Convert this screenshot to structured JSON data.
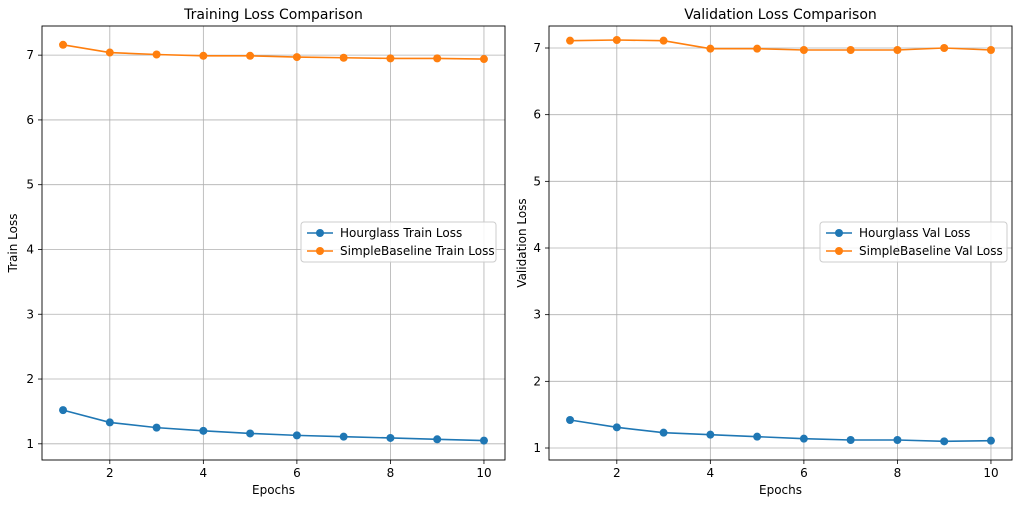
{
  "chart_data": [
    {
      "type": "line",
      "title": "Training Loss Comparison",
      "xlabel": "Epochs",
      "ylabel": "Train Loss",
      "xlim": [
        0.55,
        10.45
      ],
      "ylim": [
        0.75,
        7.45
      ],
      "xticks": [
        2,
        4,
        6,
        8,
        10
      ],
      "yticks": [
        1,
        2,
        3,
        4,
        5,
        6,
        7
      ],
      "grid": true,
      "legend": "center-right",
      "x": [
        1,
        2,
        3,
        4,
        5,
        6,
        7,
        8,
        9,
        10
      ],
      "series": [
        {
          "name": "Hourglass Train Loss",
          "color": "#1f77b4",
          "values": [
            1.52,
            1.33,
            1.25,
            1.2,
            1.16,
            1.13,
            1.11,
            1.09,
            1.07,
            1.05
          ]
        },
        {
          "name": "SimpleBaseline Train Loss",
          "color": "#ff7f0e",
          "values": [
            7.16,
            7.04,
            7.01,
            6.99,
            6.99,
            6.97,
            6.96,
            6.95,
            6.95,
            6.94
          ]
        }
      ]
    },
    {
      "type": "line",
      "title": "Validation Loss Comparison",
      "xlabel": "Epochs",
      "ylabel": "Validation Loss",
      "xlim": [
        0.55,
        10.45
      ],
      "ylim": [
        0.82,
        7.33
      ],
      "xticks": [
        2,
        4,
        6,
        8,
        10
      ],
      "yticks": [
        1,
        2,
        3,
        4,
        5,
        6,
        7
      ],
      "grid": true,
      "legend": "center-right",
      "x": [
        1,
        2,
        3,
        4,
        5,
        6,
        7,
        8,
        9,
        10
      ],
      "series": [
        {
          "name": "Hourglass Val Loss",
          "color": "#1f77b4",
          "values": [
            1.42,
            1.31,
            1.23,
            1.2,
            1.17,
            1.14,
            1.12,
            1.12,
            1.1,
            1.11
          ]
        },
        {
          "name": "SimpleBaseline Val Loss",
          "color": "#ff7f0e",
          "values": [
            7.11,
            7.12,
            7.11,
            6.99,
            6.99,
            6.97,
            6.97,
            6.97,
            7.0,
            6.97
          ]
        }
      ]
    }
  ]
}
